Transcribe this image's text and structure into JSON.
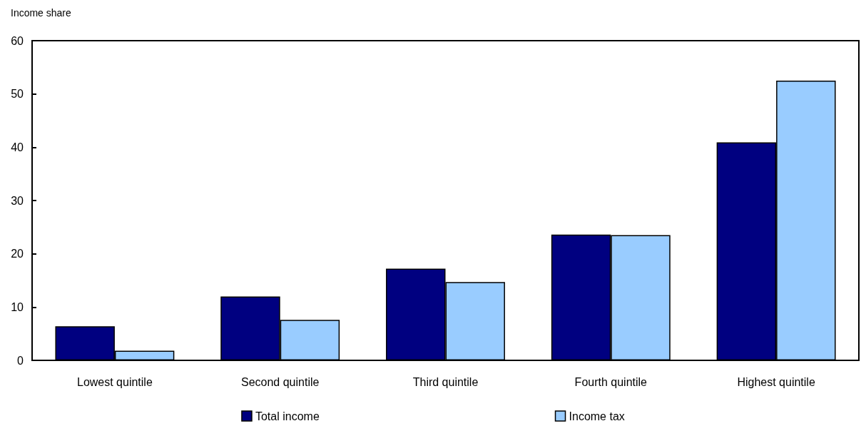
{
  "chart_data": {
    "type": "bar",
    "ylabel": "Income share",
    "categories": [
      "Lowest quintile",
      "Second quintile",
      "Third quintile",
      "Fourth quintile",
      "Highest quintile"
    ],
    "series": [
      {
        "name": "Total income",
        "color": "#000080",
        "values": [
          6.4,
          12.0,
          17.2,
          23.6,
          40.9
        ]
      },
      {
        "name": "Income tax",
        "color": "#99ccff",
        "values": [
          1.8,
          7.6,
          14.7,
          23.5,
          52.5
        ]
      }
    ],
    "ylim": [
      0,
      60
    ],
    "yticks": [
      0,
      10,
      20,
      30,
      40,
      50,
      60
    ],
    "grid": false,
    "legend": "bottom"
  }
}
